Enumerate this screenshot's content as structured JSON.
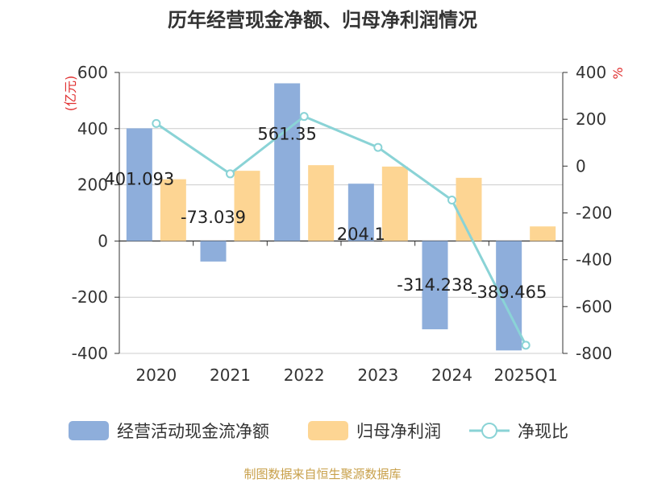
{
  "chart_data": {
    "type": "bar",
    "title": "历年经营现金净额、归母净利润情况",
    "categories": [
      "2020",
      "2021",
      "2022",
      "2023",
      "2024",
      "2025Q1"
    ],
    "y_left": {
      "unit": "(亿元)",
      "ylim": [
        -400,
        600
      ],
      "ticks": [
        "600",
        "400",
        "200",
        "0",
        "-200",
        "-400"
      ]
    },
    "y_right": {
      "unit": "%",
      "ylim": [
        -800,
        400
      ],
      "ticks": [
        "400",
        "200",
        "0",
        "-200",
        "-400",
        "-600",
        "-800"
      ]
    },
    "series": [
      {
        "name": "经营活动现金流净额",
        "type": "bar",
        "axis": "left",
        "color": "#8eaedb",
        "values": [
          401.093,
          -73.039,
          561.35,
          204.1,
          -314.238,
          -389.465
        ],
        "labels": [
          "401.093",
          "-73.039",
          "561.35",
          "204.1",
          "-314.238",
          "-389.465"
        ]
      },
      {
        "name": "归母净利润",
        "type": "bar",
        "axis": "left",
        "color": "#fdd593",
        "values": [
          220,
          250,
          270,
          265,
          225,
          52
        ]
      },
      {
        "name": "净现比",
        "type": "line",
        "axis": "right",
        "color": "#8ad3d6",
        "values": [
          182,
          -33,
          212,
          80,
          -145,
          -765
        ]
      }
    ],
    "grid": true,
    "legend_position": "bottom"
  },
  "source": "制图数据来自恒生聚源数据库"
}
